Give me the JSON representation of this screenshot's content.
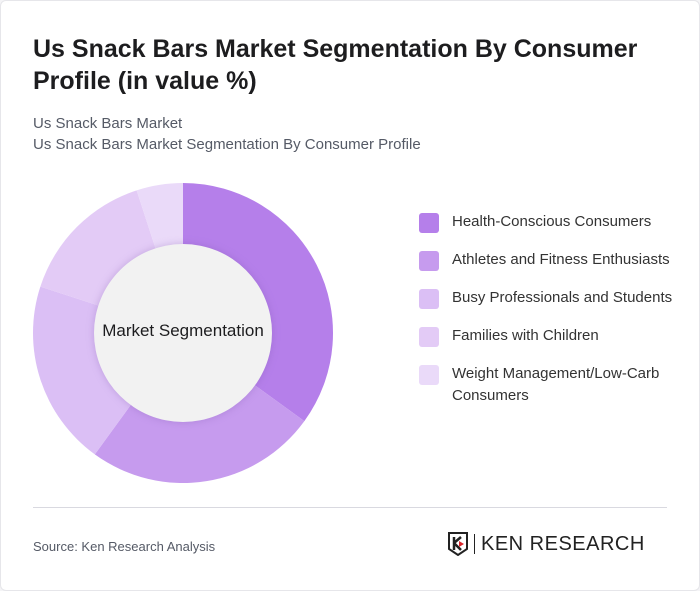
{
  "header": {
    "title": "Us Snack Bars Market Segmentation By Consumer Profile (in value %)",
    "subtitle1": "Us Snack Bars Market",
    "subtitle2": "Us Snack Bars Market Segmentation By Consumer Profile"
  },
  "chart_data": {
    "type": "pie",
    "donut": true,
    "center_label": "Market Segmentation",
    "categories": [
      "Health-Conscious Consumers",
      "Athletes and Fitness Enthusiasts",
      "Busy Professionals and Students",
      "Families with Children",
      "Weight Management/Low-Carb Consumers"
    ],
    "values": [
      35,
      25,
      20,
      15,
      5
    ],
    "colors": [
      "#b57fea",
      "#c69bee",
      "#dbbff5",
      "#e3cbf6",
      "#eadaf9"
    ],
    "legend_position": "right"
  },
  "footer": {
    "source": "Source: Ken Research Analysis",
    "logo": "KEN RESEARCH"
  }
}
